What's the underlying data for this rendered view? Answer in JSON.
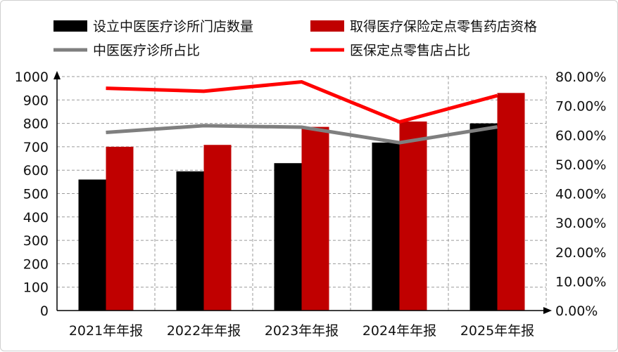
{
  "chart_data": {
    "type": "bar",
    "categories": [
      "2021年年报",
      "2022年年报",
      "2023年年报",
      "2024年年报",
      "2025年年报"
    ],
    "series": [
      {
        "name": "设立中医医疗诊所门店数量",
        "kind": "bar",
        "axis": "left",
        "color": "#000000",
        "values": [
          560,
          595,
          630,
          718,
          800
        ]
      },
      {
        "name": "取得医疗保险定点零售药店资格",
        "kind": "bar",
        "axis": "left",
        "color": "#c00000",
        "values": [
          700,
          708,
          785,
          808,
          930
        ]
      },
      {
        "name": "中医医疗诊所占比",
        "kind": "line",
        "axis": "right",
        "color": "#7f7f7f",
        "values": [
          0.609,
          0.632,
          0.627,
          0.574,
          0.628
        ]
      },
      {
        "name": "医保定点零售店占比",
        "kind": "line",
        "axis": "right",
        "color": "#ff0000",
        "values": [
          0.76,
          0.75,
          0.782,
          0.645,
          0.735
        ]
      }
    ],
    "y_left": {
      "min": 0,
      "max": 1000,
      "step": 100,
      "ticks": [
        "0",
        "100",
        "200",
        "300",
        "400",
        "500",
        "600",
        "700",
        "800",
        "900",
        "1000"
      ]
    },
    "y_right": {
      "min": 0,
      "max": 0.8,
      "step": 0.1,
      "ticks": [
        "0.00%",
        "10.00%",
        "20.00%",
        "30.00%",
        "40.00%",
        "50.00%",
        "60.00%",
        "70.00%",
        "80.00%"
      ]
    },
    "grid": true,
    "legend_position": "top"
  }
}
